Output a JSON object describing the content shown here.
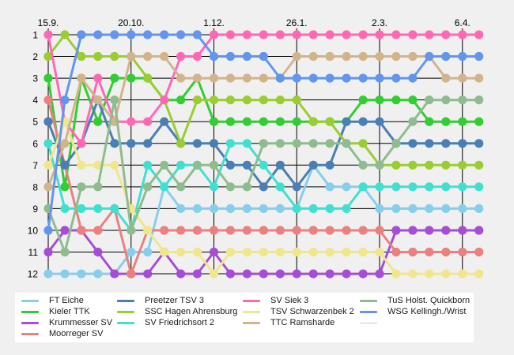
{
  "chart_data": {
    "type": "line",
    "x_tick_labels": [
      "15.9.",
      "20.10.",
      "1.12.",
      "26.1.",
      "2.3.",
      "6.4."
    ],
    "x_tick_index": [
      0,
      5,
      10,
      15,
      20,
      25
    ],
    "num_points": 27,
    "y_tick_labels": [
      "1",
      "2",
      "3",
      "4",
      "5",
      "6",
      "7",
      "8",
      "9",
      "10",
      "11",
      "12"
    ],
    "ylim": [
      1,
      12
    ],
    "y_inverted": true,
    "grid": true,
    "legend_position": "bottom",
    "series": [
      {
        "name": "FT Eiche",
        "color": "#87ceeb",
        "values": [
          12,
          12,
          12,
          12,
          12,
          11,
          11,
          8,
          9,
          9,
          9,
          9,
          9,
          9,
          9,
          9,
          7,
          8,
          8,
          8,
          9,
          9,
          9,
          9,
          9,
          9,
          9
        ]
      },
      {
        "name": "Kieler TTK",
        "color": "#32cd32",
        "values": [
          3,
          8,
          3,
          5,
          3,
          3,
          3,
          4,
          4,
          3,
          5,
          5,
          5,
          5,
          5,
          5,
          5,
          5,
          5,
          4,
          4,
          4,
          4,
          5,
          5,
          5,
          5
        ]
      },
      {
        "name": "Krummesser SV",
        "color": "#a64dd6",
        "values": [
          11,
          10,
          10,
          11,
          12,
          12,
          12,
          11,
          12,
          12,
          11,
          12,
          12,
          12,
          12,
          12,
          12,
          12,
          12,
          12,
          12,
          10,
          10,
          10,
          10,
          10,
          10
        ]
      },
      {
        "name": "Moorreger SV",
        "color": "#ea8080",
        "values": [
          4,
          7,
          10,
          10,
          9,
          12,
          10,
          10,
          10,
          10,
          10,
          10,
          10,
          10,
          10,
          10,
          10,
          10,
          10,
          10,
          10,
          11,
          11,
          11,
          11,
          11,
          11
        ]
      },
      {
        "name": "Preetzer TSV 3",
        "color": "#4a7fb5",
        "values": [
          5,
          7,
          6,
          4,
          6,
          6,
          6,
          5,
          6,
          6,
          6,
          7,
          7,
          8,
          7,
          8,
          7,
          7,
          5,
          5,
          5,
          6,
          6,
          6,
          6,
          6,
          6
        ]
      },
      {
        "name": "SSC Hagen Ahrensburg",
        "color": "#9acd32",
        "values": [
          2,
          1,
          2,
          2,
          2,
          2,
          3,
          4,
          6,
          4,
          4,
          4,
          4,
          4,
          4,
          4,
          5,
          5,
          6,
          6,
          7,
          7,
          7,
          7,
          7,
          7,
          7
        ]
      },
      {
        "name": "SV Friedrichsort 2",
        "color": "#40e0d0",
        "values": [
          6,
          9,
          9,
          9,
          9,
          10,
          7,
          8,
          7,
          7,
          8,
          6,
          6,
          7,
          8,
          9,
          9,
          9,
          9,
          8,
          8,
          8,
          8,
          8,
          8,
          8,
          8
        ]
      },
      {
        "name": "SV Siek 3",
        "color": "#ff69b4",
        "values": [
          1,
          5,
          6,
          3,
          5,
          5,
          5,
          4,
          2,
          2,
          1,
          1,
          1,
          1,
          1,
          1,
          1,
          1,
          1,
          1,
          1,
          1,
          1,
          1,
          1,
          1,
          1
        ]
      },
      {
        "name": "TSV Schwarzenbek 2",
        "color": "#f0e68c",
        "values": [
          7,
          5,
          7,
          7,
          7,
          9,
          10,
          11,
          11,
          11,
          12,
          11,
          11,
          11,
          11,
          11,
          11,
          11,
          11,
          11,
          11,
          12,
          12,
          12,
          12,
          12,
          12
        ]
      },
      {
        "name": "TTC Ramsharde",
        "color": "#d2b48c",
        "values": [
          8,
          6,
          3,
          4,
          5,
          2,
          2,
          2,
          3,
          3,
          3,
          3,
          3,
          3,
          3,
          2,
          2,
          2,
          2,
          2,
          2,
          2,
          2,
          2,
          3,
          3,
          3
        ]
      },
      {
        "name": "TuS Holst. Quickborn",
        "color": "#8fbc8f",
        "values": [
          9,
          11,
          8,
          8,
          4,
          10,
          8,
          7,
          8,
          7,
          7,
          8,
          8,
          6,
          6,
          6,
          6,
          6,
          6,
          7,
          7,
          6,
          5,
          4,
          4,
          4,
          4
        ]
      },
      {
        "name": "WSG Kellingh./Wrist",
        "color": "#6495ed",
        "values": [
          10,
          4,
          1,
          1,
          1,
          1,
          1,
          1,
          1,
          1,
          2,
          2,
          2,
          2,
          3,
          3,
          3,
          3,
          3,
          3,
          3,
          3,
          3,
          2,
          2,
          2,
          2
        ]
      }
    ],
    "legend_empty_swatch_color": "#d8b4e8"
  }
}
